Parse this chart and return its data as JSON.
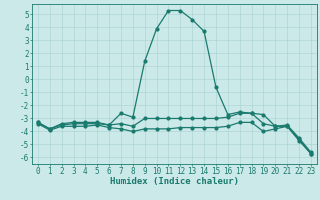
{
  "x_ticks": [
    0,
    1,
    2,
    3,
    4,
    5,
    6,
    7,
    8,
    9,
    10,
    11,
    12,
    13,
    14,
    15,
    16,
    17,
    18,
    19,
    20,
    21,
    22,
    23
  ],
  "line1": {
    "x": [
      0,
      1,
      2,
      3,
      4,
      5,
      6,
      7,
      8,
      9,
      10,
      11,
      12,
      13,
      14,
      15,
      16,
      17,
      18,
      19,
      20,
      21,
      22,
      23
    ],
    "y": [
      -3.3,
      -3.8,
      -3.4,
      -3.3,
      -3.3,
      -3.3,
      -3.5,
      -2.6,
      -2.9,
      1.4,
      3.9,
      5.3,
      5.3,
      4.6,
      3.7,
      -0.6,
      -2.7,
      -2.5,
      -2.6,
      -2.7,
      -3.6,
      -3.6,
      -4.6,
      -5.7
    ]
  },
  "line2": {
    "x": [
      0,
      1,
      2,
      3,
      4,
      5,
      6,
      7,
      8,
      9,
      10,
      11,
      12,
      13,
      14,
      15,
      16,
      17,
      18,
      19,
      20,
      21,
      22,
      23
    ],
    "y": [
      -3.3,
      -3.8,
      -3.5,
      -3.4,
      -3.4,
      -3.4,
      -3.5,
      -3.4,
      -3.6,
      -3.0,
      -3.0,
      -3.0,
      -3.0,
      -3.0,
      -3.0,
      -3.0,
      -2.9,
      -2.6,
      -2.6,
      -3.4,
      -3.6,
      -3.5,
      -4.5,
      -5.6
    ]
  },
  "line3": {
    "x": [
      0,
      1,
      2,
      3,
      4,
      5,
      6,
      7,
      8,
      9,
      10,
      11,
      12,
      13,
      14,
      15,
      16,
      17,
      18,
      19,
      20,
      21,
      22,
      23
    ],
    "y": [
      -3.4,
      -3.9,
      -3.6,
      -3.6,
      -3.6,
      -3.5,
      -3.7,
      -3.8,
      -4.0,
      -3.8,
      -3.8,
      -3.8,
      -3.7,
      -3.7,
      -3.7,
      -3.7,
      -3.6,
      -3.3,
      -3.3,
      -4.0,
      -3.8,
      -3.6,
      -4.7,
      -5.7
    ]
  },
  "bg_color": "#cce9e9",
  "grid_color": "#aed4d4",
  "line_color": "#1a7a6e",
  "ylim": [
    -6.5,
    5.8
  ],
  "yticks": [
    -6,
    -5,
    -4,
    -3,
    -2,
    -1,
    0,
    1,
    2,
    3,
    4,
    5
  ],
  "xlim": [
    -0.5,
    23.5
  ],
  "xlabel": "Humidex (Indice chaleur)",
  "xlabel_fontsize": 6.5,
  "tick_fontsize": 5.5,
  "marker": "o",
  "markersize": 2.0,
  "linewidth": 0.9
}
